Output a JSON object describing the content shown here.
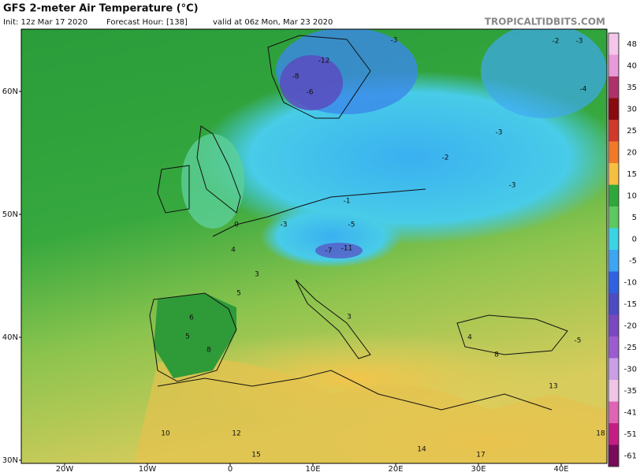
{
  "header": {
    "title": "GFS 2-meter Air Temperature (°C)",
    "init": "Init: 12z Mar 17 2020",
    "forecast_hour": "Forecast Hour: [138]",
    "valid": "valid at 06z Mon, Mar 23 2020",
    "source": "TROPICALTIDBITS.COM"
  },
  "map": {
    "lat_ticks": [
      {
        "value": 60,
        "label": "60N"
      },
      {
        "value": 50,
        "label": "50N"
      },
      {
        "value": 40,
        "label": "40N"
      },
      {
        "value": 30,
        "label": "30N"
      }
    ],
    "lon_ticks": [
      {
        "value": -20,
        "label": "20W"
      },
      {
        "value": -10,
        "label": "10W"
      },
      {
        "value": 0,
        "label": "0"
      },
      {
        "value": 10,
        "label": "10E"
      },
      {
        "value": 20,
        "label": "20E"
      },
      {
        "value": 30,
        "label": "30E"
      },
      {
        "value": 40,
        "label": "40E"
      }
    ],
    "values": [
      -12,
      -8,
      -6,
      -3,
      -2,
      -3,
      -4,
      -3,
      -2,
      -3,
      -1,
      -3,
      -5,
      -11,
      -7,
      0,
      4,
      3,
      5,
      6,
      5,
      8,
      3,
      4,
      -5,
      8,
      13,
      14,
      12,
      10,
      15,
      17,
      18
    ]
  },
  "colorbar": {
    "ticks": [
      48,
      40,
      35,
      30,
      25,
      20,
      15,
      10,
      5,
      0,
      -5,
      -10,
      -15,
      -20,
      -25,
      -30,
      -35,
      -41,
      -51,
      -61
    ],
    "colors": [
      "#f4c6ec",
      "#e89ad8",
      "#b0306a",
      "#8a0a10",
      "#d03a2a",
      "#f07a28",
      "#f5c040",
      "#2ea838",
      "#5cc860",
      "#3ad4e4",
      "#3ca6f2",
      "#2f62e0",
      "#4c4cc4",
      "#7a48c0",
      "#9c5cd0",
      "#caa0e4",
      "#f0c4e4",
      "#e064b4",
      "#c41e84",
      "#7a0a5a"
    ]
  }
}
